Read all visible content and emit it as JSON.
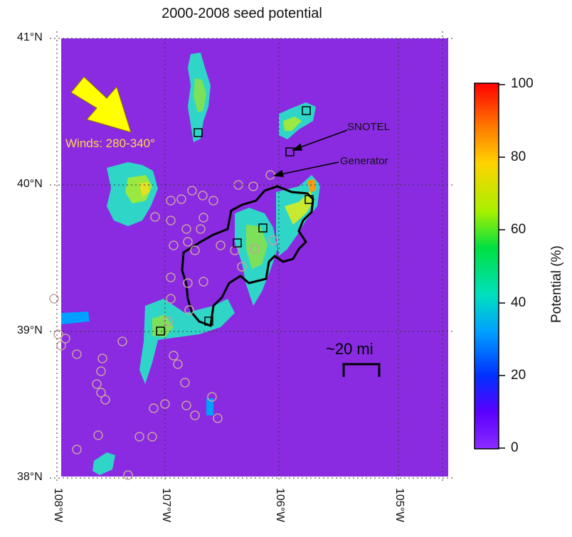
{
  "title": "2000-2008 seed potential",
  "latitude_labels": [
    "41°N",
    "40°N",
    "39°N",
    "38°N"
  ],
  "longitude_labels": [
    "108°W",
    "107°W",
    "106°W",
    "105°W"
  ],
  "colorbar": {
    "title": "Potential (%)",
    "ticks": [
      "100",
      "80",
      "60",
      "40",
      "20",
      "0"
    ],
    "colors": [
      "#ff0000",
      "#ff8c00",
      "#ffd400",
      "#a8f000",
      "#00e040",
      "#00e0c0",
      "#00a0ff",
      "#0030ff",
      "#6a00ff",
      "#8c2bff"
    ]
  },
  "annotations": {
    "wind": "Winds: 280-340°",
    "snotel": "SNOTEL",
    "generator": "Generator",
    "scale": "~20 mi"
  },
  "colors": {
    "background_field": "#8a2be2",
    "wind_arrow": "#ffff00",
    "wind_text": "#ffd84a",
    "target_outline": "#000000",
    "generator_marker": "#c8a0a0"
  }
}
